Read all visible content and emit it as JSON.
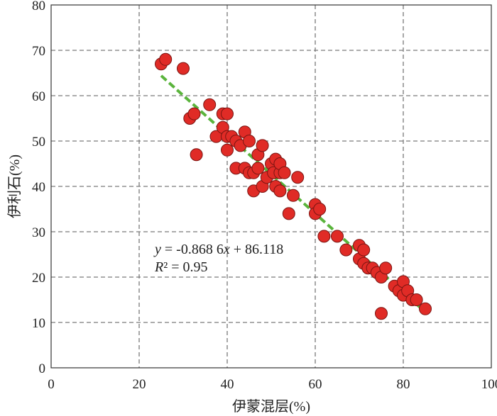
{
  "chart_data": {
    "type": "scatter",
    "xlabel": "伊蒙混层(%)",
    "ylabel": "伊利石(%)",
    "xlim": [
      0,
      100
    ],
    "ylim": [
      0,
      80
    ],
    "xticks": [
      0,
      20,
      40,
      60,
      80,
      100
    ],
    "yticks": [
      0,
      10,
      20,
      30,
      40,
      50,
      60,
      70,
      80
    ],
    "grid": true,
    "point_color": "#e02b26",
    "fit_line_color": "#5ab43c",
    "points": [
      [
        25,
        67
      ],
      [
        26,
        68
      ],
      [
        30,
        66
      ],
      [
        31.5,
        55
      ],
      [
        32.5,
        56
      ],
      [
        33,
        47
      ],
      [
        36,
        58
      ],
      [
        37.5,
        51
      ],
      [
        39,
        53
      ],
      [
        39,
        56
      ],
      [
        40,
        56
      ],
      [
        40,
        51
      ],
      [
        40,
        48
      ],
      [
        41,
        51
      ],
      [
        42,
        50
      ],
      [
        42,
        44
      ],
      [
        43,
        49
      ],
      [
        44,
        52
      ],
      [
        44,
        44
      ],
      [
        45,
        50
      ],
      [
        45,
        43
      ],
      [
        46,
        39
      ],
      [
        46,
        43
      ],
      [
        47,
        47
      ],
      [
        47,
        44
      ],
      [
        48,
        49
      ],
      [
        48,
        40
      ],
      [
        49,
        42
      ],
      [
        50,
        45
      ],
      [
        50.5,
        43
      ],
      [
        51,
        46
      ],
      [
        51,
        40
      ],
      [
        52,
        39
      ],
      [
        52,
        43
      ],
      [
        52,
        45
      ],
      [
        53,
        43
      ],
      [
        54,
        34
      ],
      [
        55,
        38
      ],
      [
        56,
        42
      ],
      [
        60,
        36
      ],
      [
        60,
        34
      ],
      [
        61,
        35
      ],
      [
        62,
        29
      ],
      [
        65,
        29
      ],
      [
        67,
        26
      ],
      [
        70,
        27
      ],
      [
        70,
        24
      ],
      [
        71,
        26
      ],
      [
        71,
        23
      ],
      [
        72,
        22
      ],
      [
        73,
        22
      ],
      [
        74,
        21
      ],
      [
        75,
        20
      ],
      [
        75,
        12
      ],
      [
        76,
        22
      ],
      [
        78,
        18
      ],
      [
        79,
        17
      ],
      [
        80,
        16
      ],
      [
        80,
        19
      ],
      [
        81,
        17
      ],
      [
        82,
        15
      ],
      [
        83,
        15
      ],
      [
        85,
        13
      ]
    ],
    "fit": {
      "slope": -0.8686,
      "intercept": 86.118,
      "x_range": [
        25,
        85
      ],
      "equation": "y = -0.868 6x + 86.118",
      "r2": "R² = 0.95"
    }
  }
}
